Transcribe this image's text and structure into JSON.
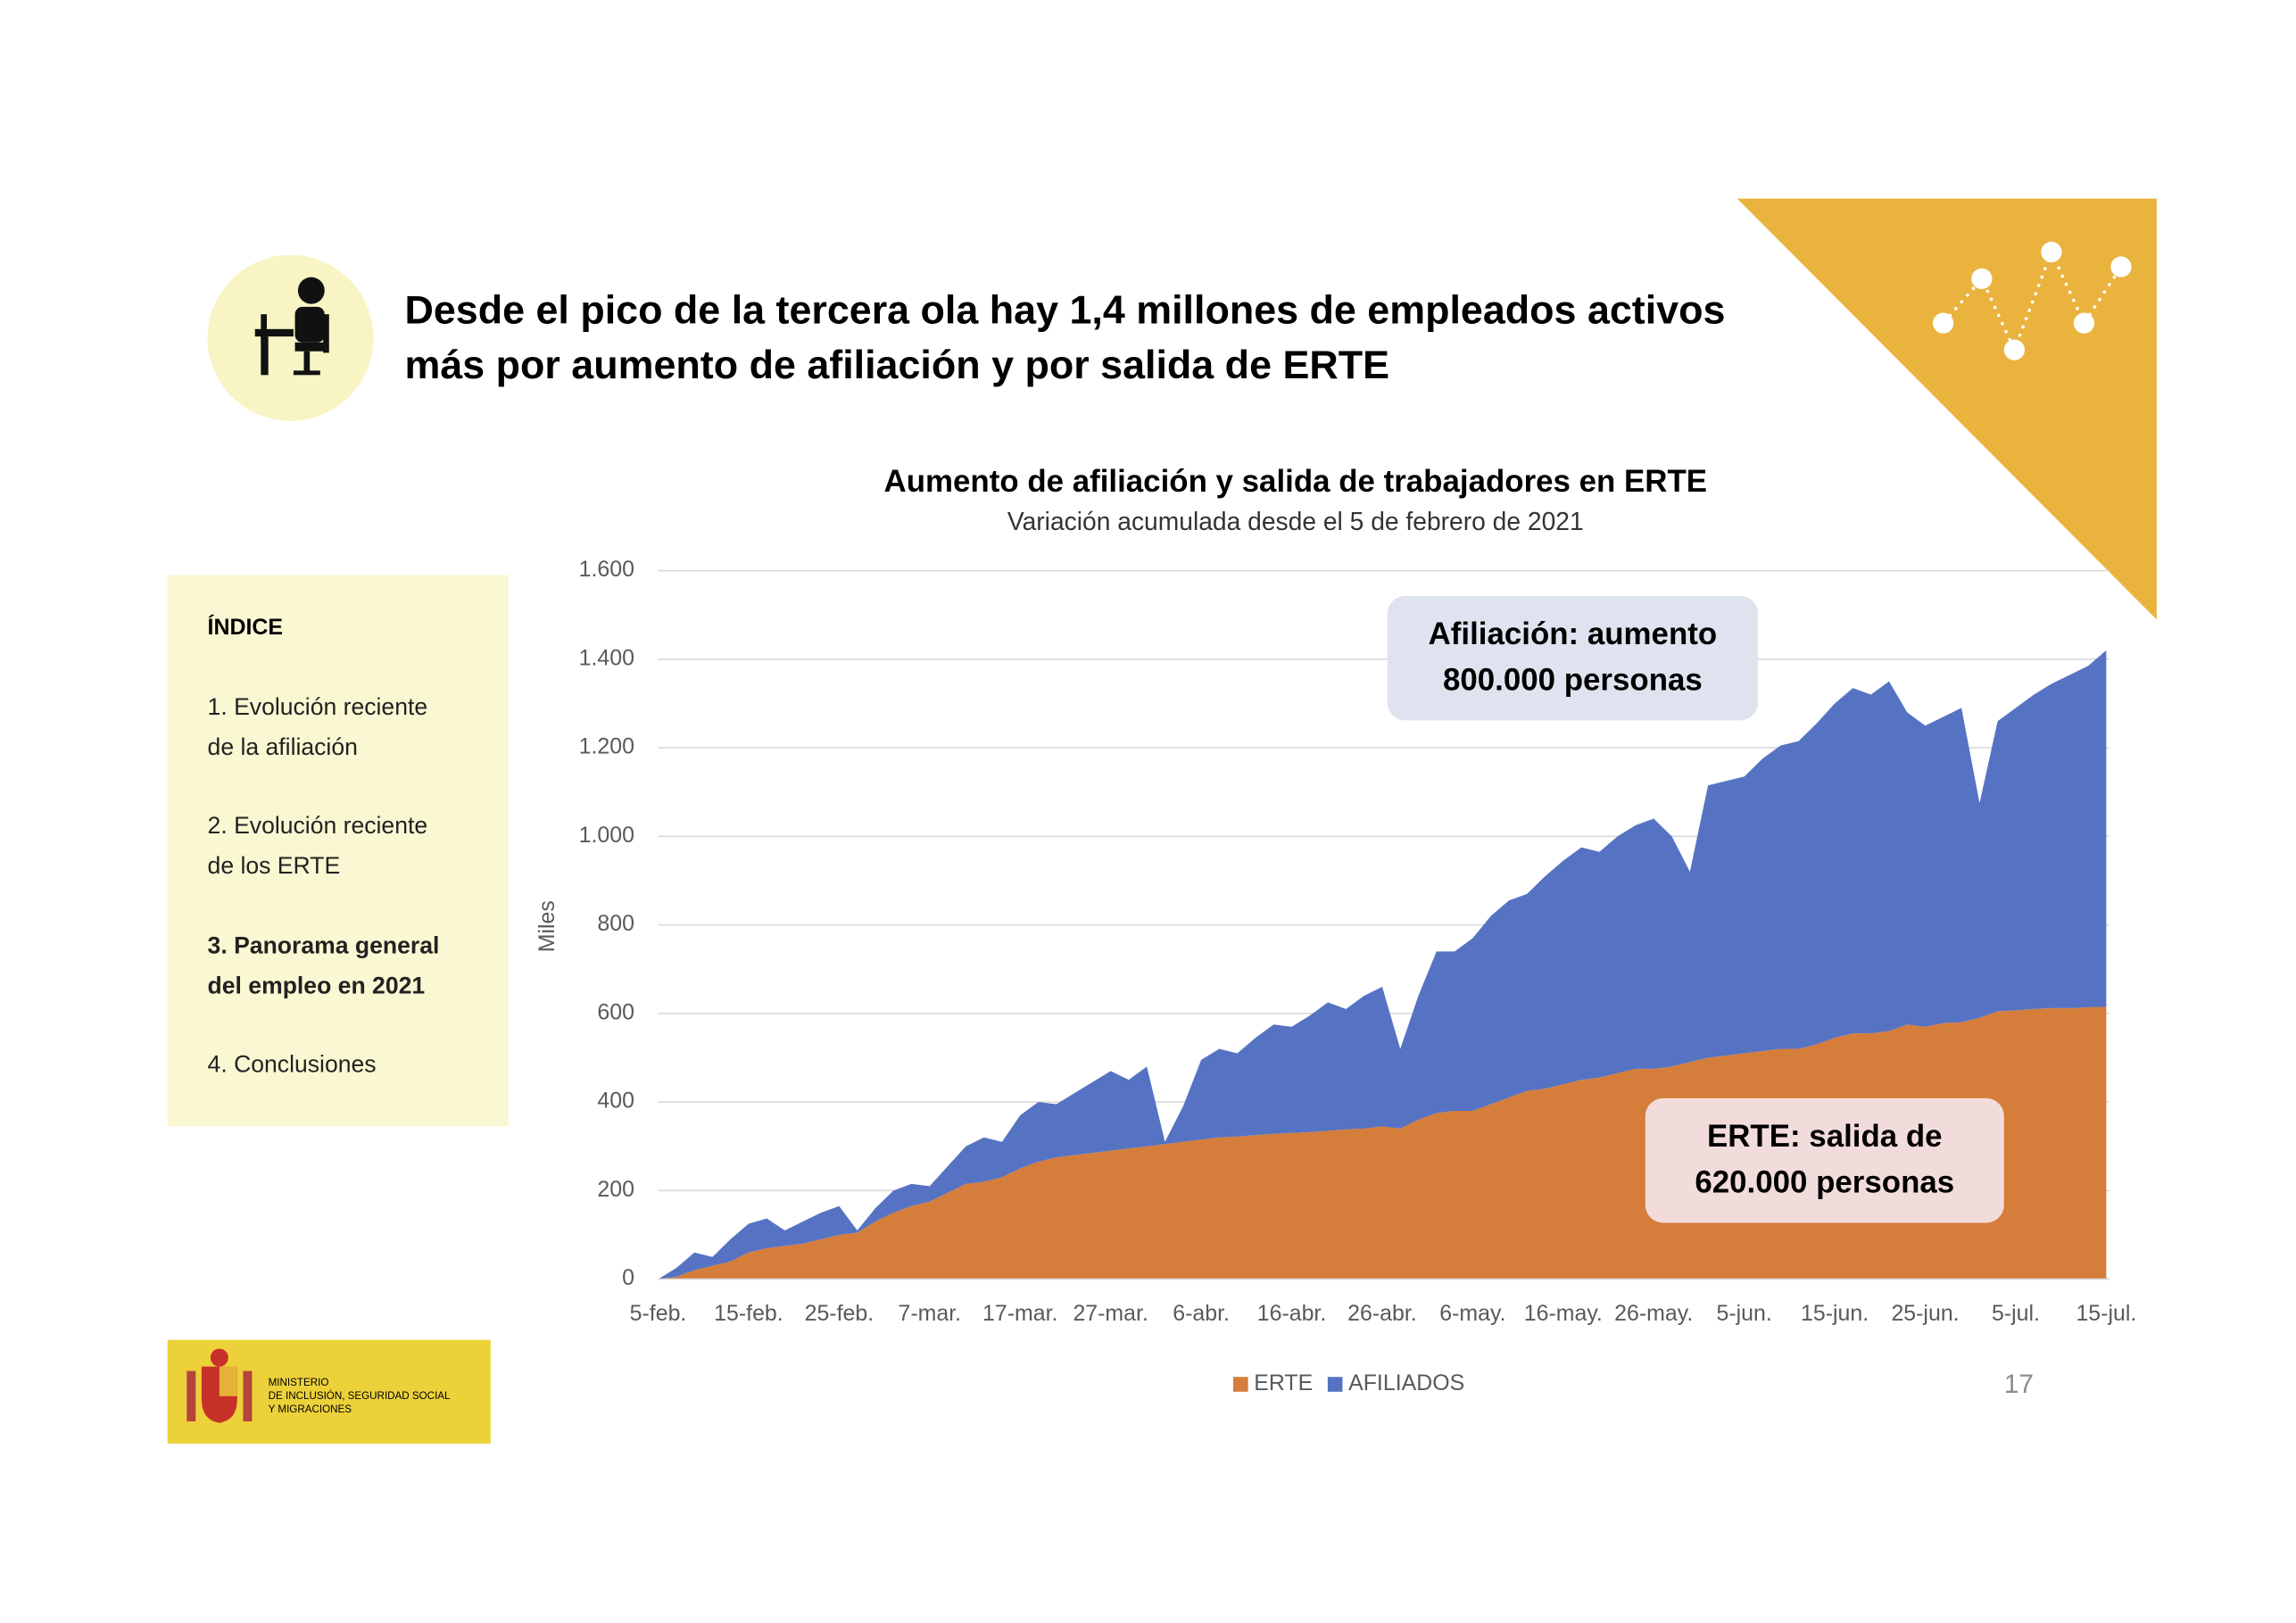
{
  "header": {
    "title_lines": [
      "Desde el pico de la tercera ola hay 1,4 millones de empleados activos",
      "más por aumento de afiliación y por salida de ERTE"
    ]
  },
  "index": {
    "heading": "ÍNDICE",
    "items": [
      {
        "lines": [
          "1. Evolución reciente",
          "de la afiliación"
        ],
        "bold": false
      },
      {
        "lines": [
          "2. Evolución reciente",
          "de los ERTE"
        ],
        "bold": false
      },
      {
        "lines": [
          "3. Panorama general",
          "del empleo en 2021"
        ],
        "bold": true
      },
      {
        "lines": [
          "4. Conclusiones"
        ],
        "bold": false
      }
    ]
  },
  "footer": {
    "logo_lines": [
      "MINISTERIO",
      "DE INCLUSIÓN, SEGURIDAD SOCIAL",
      "Y MIGRACIONES"
    ],
    "page_number": 17
  },
  "chart_data": {
    "type": "area",
    "stacked": true,
    "title": "Aumento de afiliación y salida de trabajadores en ERTE",
    "subtitle": "Variación acumulada desde el 5 de febrero de 2021",
    "y_label": "Miles",
    "categories": [
      "5-feb.",
      null,
      null,
      null,
      null,
      "15-feb.",
      null,
      null,
      null,
      null,
      "25-feb.",
      null,
      null,
      null,
      null,
      "7-mar.",
      null,
      null,
      null,
      null,
      "17-mar.",
      null,
      null,
      null,
      null,
      "27-mar.",
      null,
      null,
      null,
      null,
      "6-abr.",
      null,
      null,
      null,
      null,
      "16-abr.",
      null,
      null,
      null,
      null,
      "26-abr.",
      null,
      null,
      null,
      null,
      "6-may.",
      null,
      null,
      null,
      null,
      "16-may.",
      null,
      null,
      null,
      null,
      "26-may.",
      null,
      null,
      null,
      null,
      "5-jun.",
      null,
      null,
      null,
      null,
      "15-jun.",
      null,
      null,
      null,
      null,
      "25-jun.",
      null,
      null,
      null,
      null,
      "5-jul.",
      null,
      null,
      null,
      null,
      "15-jul."
    ],
    "series": [
      {
        "name": "ERTE",
        "color": "#d57d3b",
        "values": [
          0,
          5,
          20,
          30,
          40,
          60,
          70,
          75,
          80,
          90,
          100,
          105,
          130,
          150,
          165,
          175,
          195,
          215,
          220,
          230,
          250,
          265,
          275,
          280,
          285,
          290,
          295,
          300,
          305,
          310,
          315,
          320,
          322,
          325,
          328,
          330,
          332,
          335,
          338,
          340,
          345,
          340,
          360,
          375,
          380,
          380,
          395,
          410,
          425,
          430,
          440,
          450,
          455,
          465,
          475,
          475,
          480,
          490,
          500,
          505,
          510,
          515,
          520,
          520,
          530,
          545,
          555,
          555,
          560,
          575,
          570,
          578,
          580,
          590,
          605,
          607,
          610,
          612,
          612,
          614,
          615
        ]
      },
      {
        "name": "AFILIADOS",
        "color": "#5673c3",
        "values": [
          0,
          20,
          40,
          20,
          50,
          65,
          67,
          35,
          50,
          60,
          65,
          5,
          30,
          50,
          50,
          35,
          60,
          85,
          100,
          80,
          120,
          135,
          120,
          140,
          160,
          180,
          155,
          180,
          5,
          80,
          180,
          200,
          188,
          220,
          247,
          240,
          263,
          290,
          272,
          300,
          315,
          180,
          280,
          365,
          360,
          390,
          425,
          445,
          445,
          480,
          505,
          525,
          510,
          535,
          550,
          565,
          520,
          430,
          615,
          620,
          625,
          660,
          685,
          695,
          725,
          755,
          780,
          765,
          790,
          705,
          680,
          692,
          710,
          485,
          655,
          683,
          710,
          733,
          753,
          771,
          805
        ]
      }
    ],
    "ylim": [
      0,
      1600
    ],
    "yticks": [
      0,
      200,
      400,
      600,
      800,
      {
        "value": 1000,
        "label": "1.000"
      },
      {
        "value": 1200,
        "label": "1.200"
      },
      {
        "value": 1400,
        "label": "1.400"
      },
      {
        "value": 1600,
        "label": "1.600"
      }
    ],
    "grid": true,
    "legend": "bottom",
    "annotations": [
      {
        "lines": [
          "Afiliación: aumento",
          "800.000 personas"
        ]
      },
      {
        "lines": [
          "ERTE: salida de",
          "620.000 personas"
        ]
      }
    ]
  }
}
